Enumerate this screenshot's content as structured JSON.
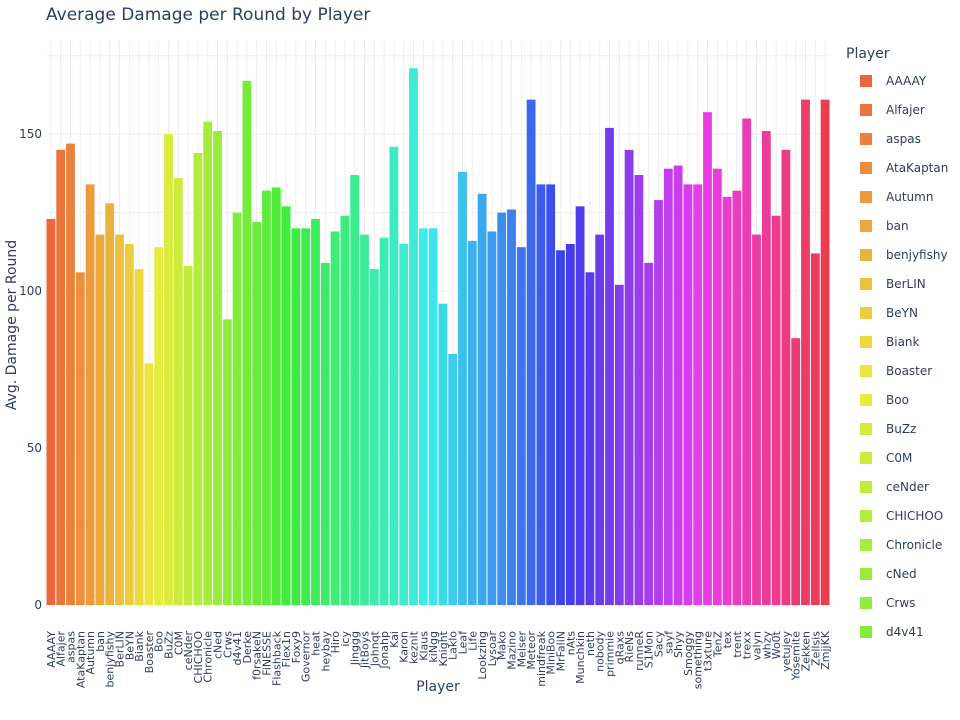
{
  "chart_data": {
    "type": "bar",
    "title": "Average Damage per Round by Player",
    "xlabel": "Player",
    "ylabel": "Avg. Damage per Round",
    "ylim": [
      0,
      180
    ],
    "yticks": [
      0,
      50,
      100,
      150
    ],
    "grid": true,
    "legend_title": "Player",
    "legend_position": "right",
    "categories": [
      "AAAAY",
      "Alfajer",
      "aspas",
      "AtaKaptan",
      "Autumn",
      "ban",
      "benjyfishy",
      "BerLIN",
      "BeYN",
      "Biank",
      "Boaster",
      "Boo",
      "BuZz",
      "C0M",
      "ceNder",
      "CHICHOO",
      "Chronicle",
      "cNed",
      "Crws",
      "d4v41",
      "Derke",
      "f0rsakeN",
      "FiNESSE",
      "Flashback",
      "Flex1n",
      "Foxy9",
      "Governor",
      "heat",
      "heybay",
      "Hiro",
      "icy",
      "Jinggg",
      "JitBoys",
      "Johnqt",
      "Jonahp",
      "Kai",
      "Karon",
      "keznit",
      "Klaus",
      "kiNgg",
      "Knight",
      "Laklo",
      "Leaf",
      "Life",
      "Lookzing",
      "Lysoar",
      "Mako",
      "Mazino",
      "Melser",
      "Meteor",
      "mindfreak",
      "MiniBoo",
      "MrFaliN",
      "nAts",
      "Munchkin",
      "neth",
      "nobody",
      "primmie",
      "qRaxs",
      "RieNs",
      "runneR",
      "S1Mon",
      "Sacy",
      "sayf",
      "Shyy",
      "Smoggy",
      "something",
      "t3xture",
      "TenZ",
      "tex",
      "trent",
      "trexx",
      "valyn",
      "whzy",
      "Wo0t",
      "yetujey",
      "Yosemite",
      "Zekken",
      "Zellsis",
      "ZmjjKK"
    ],
    "values": [
      123,
      145,
      147,
      106,
      134,
      118,
      128,
      118,
      115,
      107,
      77,
      114,
      150,
      136,
      108,
      144,
      154,
      151,
      91,
      125,
      167,
      122,
      132,
      133,
      127,
      120,
      120,
      123,
      109,
      119,
      124,
      137,
      118,
      107,
      117,
      146,
      115,
      171,
      120,
      120,
      96,
      80,
      138,
      116,
      131,
      119,
      125,
      126,
      114,
      161,
      134,
      134,
      113,
      115,
      127,
      106,
      118,
      152,
      102,
      145,
      137,
      109,
      129,
      139,
      140,
      134,
      134,
      157,
      139,
      130,
      132,
      155,
      118,
      151,
      124,
      145,
      85,
      161,
      112,
      161
    ],
    "legend_entries": [
      "AAAAY",
      "Alfajer",
      "aspas",
      "AtaKaptan",
      "Autumn",
      "ban",
      "benjyfishy",
      "BerLIN",
      "BeYN",
      "Biank",
      "Boaster",
      "Boo",
      "BuZz",
      "C0M",
      "ceNder",
      "CHICHOO",
      "Chronicle",
      "cNed",
      "Crws",
      "d4v41"
    ]
  }
}
